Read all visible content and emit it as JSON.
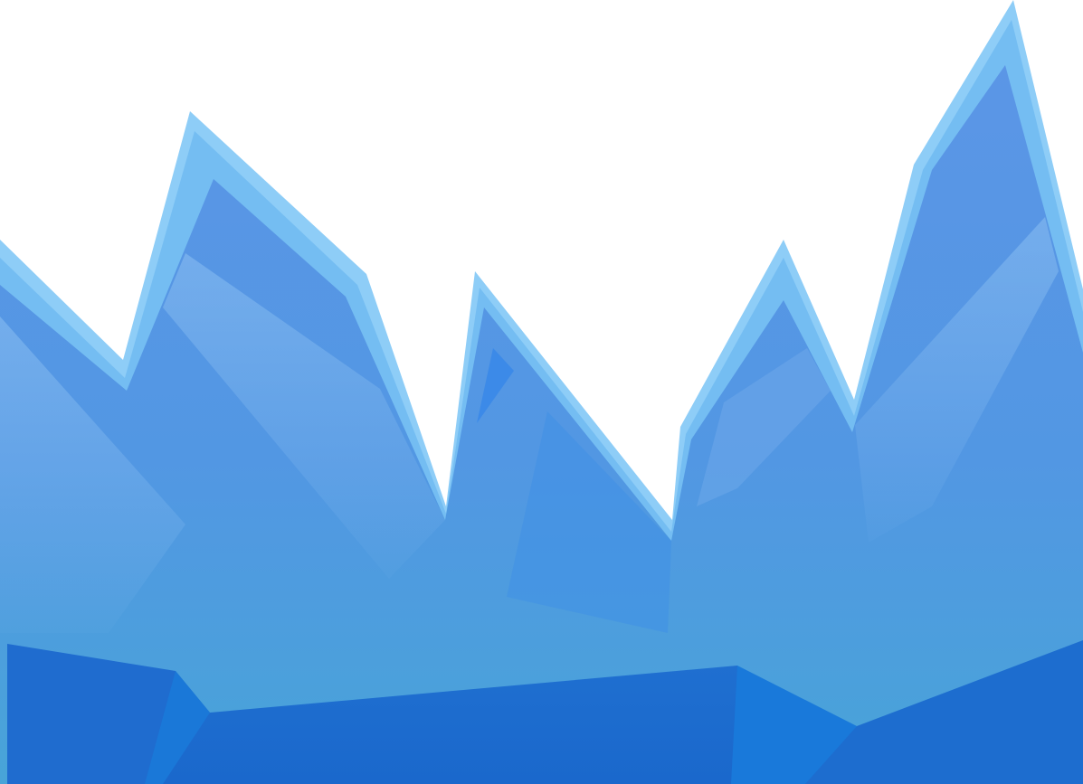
{
  "scene": {
    "subject": "ice-mountains-illustration",
    "palette": {
      "background": "#ffffff",
      "rim_light": "#8ecdf7",
      "rim_mid": "#74bdf2",
      "face_top": "#5b96e6",
      "face_bottom": "#4a9fd8",
      "facet_highlight": "#7fb3ee",
      "deep_blue": "#3c8ae8",
      "base_dark": "#1d6ccf",
      "base_mid": "#1877d6"
    }
  }
}
